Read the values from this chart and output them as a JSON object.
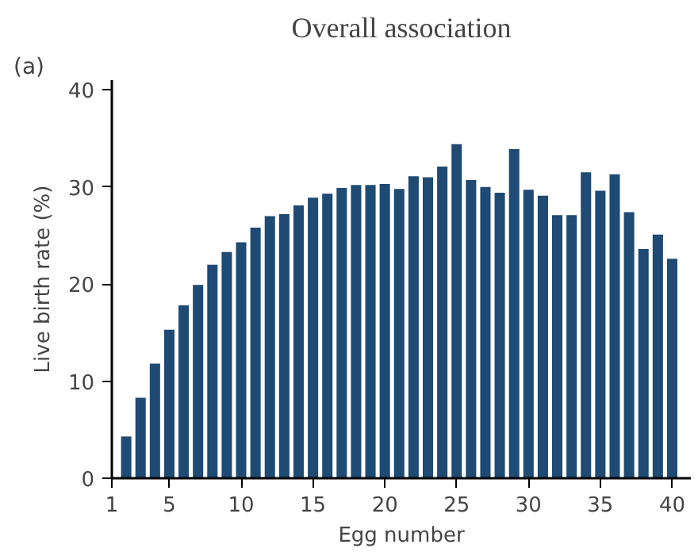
{
  "chart_data": {
    "type": "bar",
    "title": "Overall association",
    "annotations": [
      "(a)"
    ],
    "xlabel": "Egg number",
    "ylabel": "Live birth rate (%)",
    "x": [
      2,
      3,
      4,
      5,
      6,
      7,
      8,
      9,
      10,
      11,
      12,
      13,
      14,
      15,
      16,
      17,
      18,
      19,
      20,
      21,
      22,
      23,
      24,
      25,
      26,
      27,
      28,
      29,
      30,
      31,
      32,
      33,
      34,
      35,
      36,
      37,
      38,
      39,
      40
    ],
    "values": [
      4.3,
      8.3,
      11.8,
      15.3,
      17.8,
      19.9,
      22.0,
      23.3,
      24.3,
      25.8,
      27.0,
      27.2,
      28.1,
      28.9,
      29.3,
      29.9,
      30.2,
      30.2,
      30.3,
      29.8,
      31.1,
      31.0,
      32.1,
      34.4,
      30.7,
      30.0,
      29.4,
      33.9,
      29.7,
      29.1,
      27.1,
      27.1,
      31.5,
      29.6,
      31.3,
      27.4,
      23.6,
      25.1,
      22.6
    ],
    "color": "#1f4a73",
    "xlim": [
      1,
      41.3
    ],
    "xticks": [
      1,
      5,
      10,
      15,
      20,
      25,
      30,
      35,
      40
    ],
    "ylim": [
      0,
      41
    ],
    "yticks": [
      0,
      10,
      20,
      30,
      40
    ],
    "grid": false
  }
}
